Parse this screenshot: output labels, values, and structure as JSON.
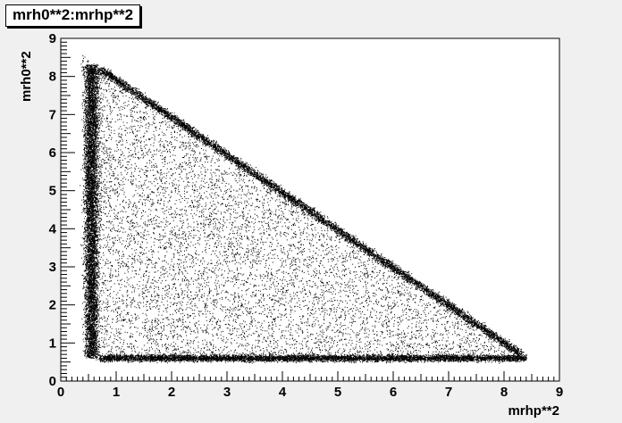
{
  "plot": {
    "title": "mrh0**2:mrhp**2"
  },
  "chart_data": {
    "type": "scatter",
    "title": "mrh0**2:mrhp**2",
    "xlabel": "mrhp**2",
    "ylabel": "mrh0**2",
    "xlim": [
      0,
      9
    ],
    "ylim": [
      0,
      9
    ],
    "x_ticks": [
      "0",
      "1",
      "2",
      "3",
      "4",
      "5",
      "6",
      "7",
      "8",
      "9"
    ],
    "y_ticks": [
      "0",
      "1",
      "2",
      "3",
      "4",
      "5",
      "6",
      "7",
      "8",
      "9"
    ],
    "grid": false,
    "legend": "none",
    "point_color": "#000000",
    "background_color": "#f0f0f0",
    "description_points": {
      "vertices": [
        {
          "x": 0.35,
          "y": 8.6
        },
        {
          "x": 0.55,
          "y": 0.55
        },
        {
          "x": 8.5,
          "y": 0.6
        }
      ],
      "dense_bands": [
        {
          "from": {
            "x": 0.55,
            "y": 8.3
          },
          "to": {
            "x": 0.55,
            "y": 0.6
          }
        },
        {
          "from": {
            "x": 0.7,
            "y": 0.6
          },
          "to": {
            "x": 8.4,
            "y": 0.6
          }
        },
        {
          "from": {
            "x": 0.7,
            "y": 8.2
          },
          "to": {
            "x": 8.3,
            "y": 0.7
          }
        }
      ]
    }
  }
}
